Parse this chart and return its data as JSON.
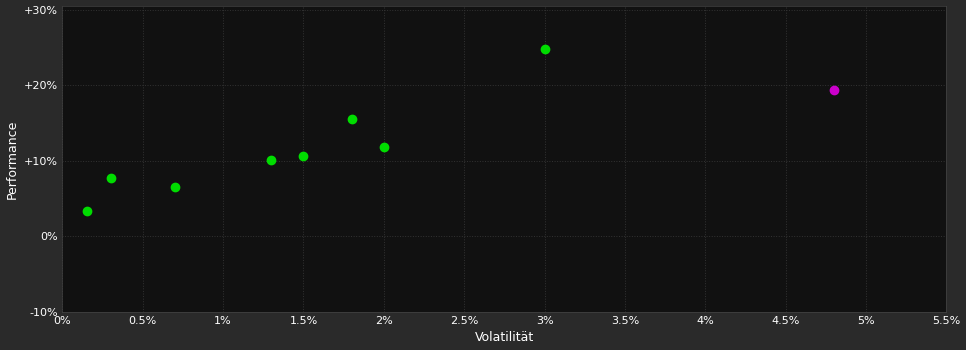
{
  "background_color": "#2a2a2a",
  "plot_bg_color": "#111111",
  "grid_color": "#333333",
  "xlabel": "Volatilität",
  "ylabel": "Performance",
  "xlim": [
    0.0,
    0.055
  ],
  "ylim": [
    -0.1,
    0.305
  ],
  "xticks": [
    0.0,
    0.005,
    0.01,
    0.015,
    0.02,
    0.025,
    0.03,
    0.035,
    0.04,
    0.045,
    0.05,
    0.055
  ],
  "xtick_labels": [
    "0%",
    "0.5%",
    "1%",
    "1.5%",
    "2%",
    "2.5%",
    "3%",
    "3.5%",
    "4%",
    "4.5%",
    "5%",
    "5.5%"
  ],
  "yticks": [
    -0.1,
    0.0,
    0.1,
    0.2,
    0.3
  ],
  "ytick_labels": [
    "-10%",
    "0%",
    "+10%",
    "+20%",
    "+30%"
  ],
  "green_points": [
    [
      0.0015,
      0.034
    ],
    [
      0.003,
      0.077
    ],
    [
      0.007,
      0.066
    ],
    [
      0.013,
      0.101
    ],
    [
      0.015,
      0.106
    ],
    [
      0.018,
      0.155
    ],
    [
      0.02,
      0.118
    ],
    [
      0.03,
      0.248
    ]
  ],
  "magenta_points": [
    [
      0.048,
      0.194
    ]
  ],
  "green_color": "#00dd00",
  "magenta_color": "#cc00cc",
  "marker_size": 36,
  "text_color": "#ffffff",
  "tick_fontsize": 8,
  "label_fontsize": 9
}
